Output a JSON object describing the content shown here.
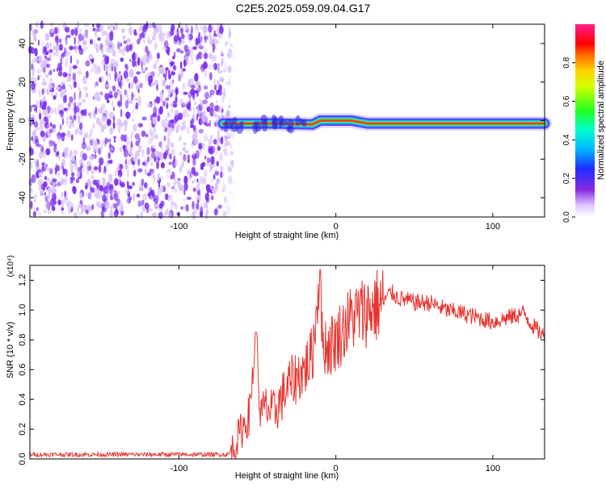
{
  "title": "C2E5.2025.059.09.04.G17",
  "colors": {
    "noise": "#7a2bf0",
    "noise_light": "#d9c2fb",
    "snr_line": "#e8342f"
  },
  "chart_data": [
    {
      "type": "heatmap",
      "title": "C2E5.2025.059.09.04.G17",
      "xlabel": "Height of straight line (km)",
      "ylabel": "Frequency (Hz)",
      "xlim": [
        -195,
        133
      ],
      "ylim": [
        -50,
        50
      ],
      "xticks": [
        -100,
        0,
        100
      ],
      "xtick_labels": [
        "-100",
        "0",
        "100"
      ],
      "yticks": [
        -40,
        -20,
        0,
        20,
        40
      ],
      "ytick_labels": [
        "-40",
        "-20",
        "0",
        "20",
        "40"
      ],
      "colorbar": {
        "label": "Normalized spectral amplitude",
        "range": [
          0,
          1
        ],
        "ticks": [
          0.0,
          0.2,
          0.4,
          0.6,
          0.8
        ],
        "tick_labels": [
          "0.0",
          "0.2",
          "0.4",
          "0.6",
          "0.8"
        ],
        "colormap": "rainbow (white-violet-blue-cyan-green-yellow-red-magenta)"
      },
      "regions": [
        {
          "name": "noise",
          "x_range": [
            -195,
            -72
          ],
          "freq_range": [
            -50,
            50
          ],
          "amplitude": "low (scattered violet speckle)"
        },
        {
          "name": "signal",
          "x_range": [
            -72,
            133
          ],
          "freq_center_hz": [
            {
              "x": -72,
              "f": -1.5
            },
            {
              "x": -40,
              "f": -1.5
            },
            {
              "x": -15,
              "f": -2
            },
            {
              "x": -10,
              "f": 0
            },
            {
              "x": 10,
              "f": 0
            },
            {
              "x": 20,
              "f": -1.5
            },
            {
              "x": 133,
              "f": -1.5
            }
          ],
          "peak_amplitude": 1.0
        }
      ],
      "grid": false
    },
    {
      "type": "line",
      "xlabel": "Height of straight line (km)",
      "ylabel": "SNR (10 * v/v)",
      "y_multiplier": "(x10⁴)",
      "xlim": [
        -195,
        133
      ],
      "ylim": [
        0,
        1.3
      ],
      "xticks": [
        -100,
        0,
        100
      ],
      "xtick_labels": [
        "-100",
        "0",
        "100"
      ],
      "yticks": [
        0.0,
        0.2,
        0.4,
        0.6,
        0.8,
        1.0,
        1.2
      ],
      "ytick_labels": [
        "0.0",
        "0.2",
        "0.4",
        "0.6",
        "0.8",
        "1.0",
        "1.2"
      ],
      "series": [
        {
          "color": "#e8342f",
          "x": [
            -195,
            -150,
            -100,
            -75,
            -68,
            -65,
            -60,
            -55,
            -51,
            -48,
            -45,
            -40,
            -35,
            -30,
            -25,
            -20,
            -15,
            -10,
            -9,
            -5,
            0,
            10,
            20,
            30,
            35,
            40,
            50,
            60,
            70,
            80,
            90,
            100,
            110,
            120,
            125,
            133
          ],
          "y": [
            0.03,
            0.03,
            0.03,
            0.03,
            0.03,
            0.08,
            0.2,
            0.3,
            0.85,
            0.28,
            0.35,
            0.3,
            0.4,
            0.5,
            0.55,
            0.6,
            0.7,
            1.27,
            0.8,
            0.75,
            0.8,
            0.95,
            1.0,
            1.05,
            1.12,
            1.08,
            1.05,
            1.05,
            1.0,
            0.98,
            0.95,
            0.92,
            0.95,
            0.98,
            0.9,
            0.82
          ]
        }
      ],
      "annotations": [
        {
          "x": -51,
          "y": 0.85,
          "text": ""
        },
        {
          "x": -10,
          "y": 1.27,
          "text": ""
        }
      ],
      "grid": false
    }
  ]
}
